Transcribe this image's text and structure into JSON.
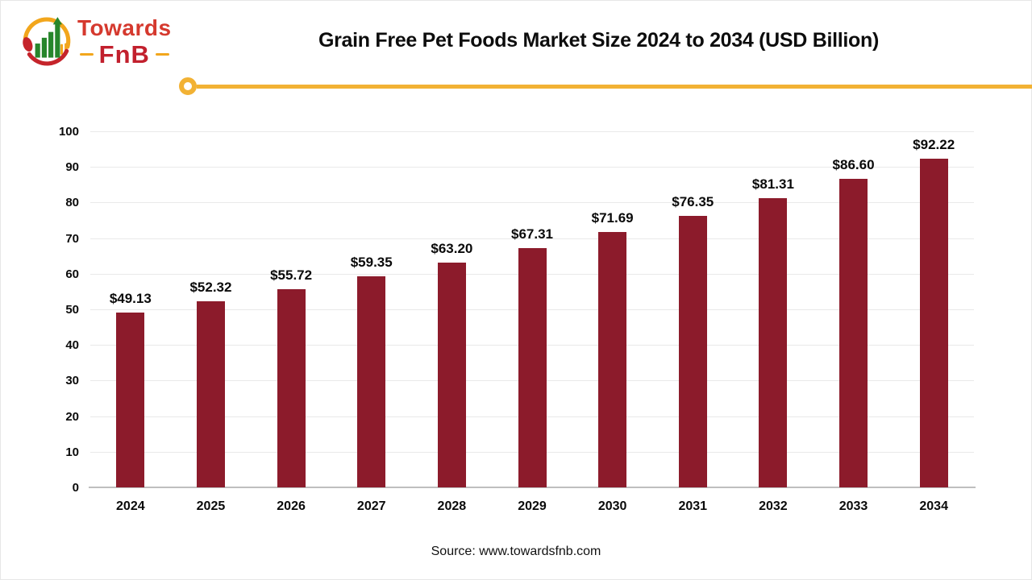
{
  "logo": {
    "towards": "Towards",
    "fnb": "FnB"
  },
  "header": {
    "title": "Grain Free Pet Foods Market Size 2024 to 2034 (USD Billion)"
  },
  "footer": {
    "source": "Source: www.towardsfnb.com"
  },
  "colors": {
    "bar": "#8c1b2b",
    "accent_yellow": "#f2b234",
    "logo_red": "#d5392e",
    "logo_dark_red": "#c2202d",
    "logo_green": "#27862b",
    "grid": "#e9e9e9",
    "axis": "#bfbfbf"
  },
  "chart_data": {
    "type": "bar",
    "title": "Grain Free Pet Foods Market Size 2024 to 2034 (USD Billion)",
    "categories": [
      "2024",
      "2025",
      "2026",
      "2027",
      "2028",
      "2029",
      "2030",
      "2031",
      "2032",
      "2033",
      "2034"
    ],
    "values": [
      49.13,
      52.32,
      55.72,
      59.35,
      63.2,
      67.31,
      71.69,
      76.35,
      81.31,
      86.6,
      92.22
    ],
    "value_labels": [
      "$49.13",
      "$52.32",
      "$55.72",
      "$59.35",
      "$63.20",
      "$67.31",
      "$71.69",
      "$76.35",
      "$81.31",
      "$86.60",
      "$92.22"
    ],
    "xlabel": "",
    "ylabel": "",
    "ylim": [
      0,
      100
    ],
    "ytick_step": 10,
    "grid": true,
    "legend": "none",
    "bar_color": "#8c1b2b"
  }
}
